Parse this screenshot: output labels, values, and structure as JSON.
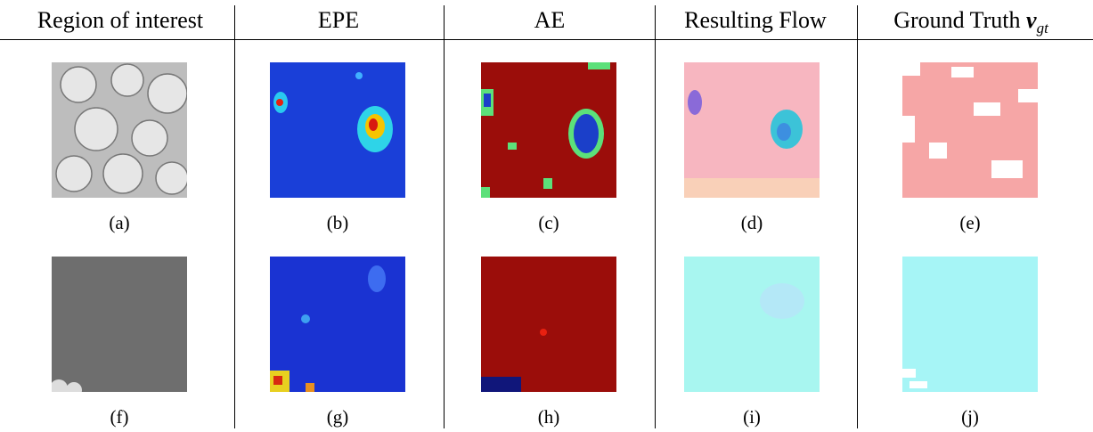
{
  "header": {
    "columns": [
      {
        "text": "Region of interest"
      },
      {
        "text": "EPE"
      },
      {
        "text": "AE"
      },
      {
        "text": "Resulting Flow"
      },
      {
        "text": "Ground Truth",
        "symbol": "v",
        "subscript": "gt"
      }
    ]
  },
  "rows": [
    {
      "captions": [
        "(a)",
        "(b)",
        "(c)",
        "(d)",
        "(e)"
      ]
    },
    {
      "captions": [
        "(f)",
        "(g)",
        "(h)",
        "(i)",
        "(j)"
      ]
    }
  ]
}
